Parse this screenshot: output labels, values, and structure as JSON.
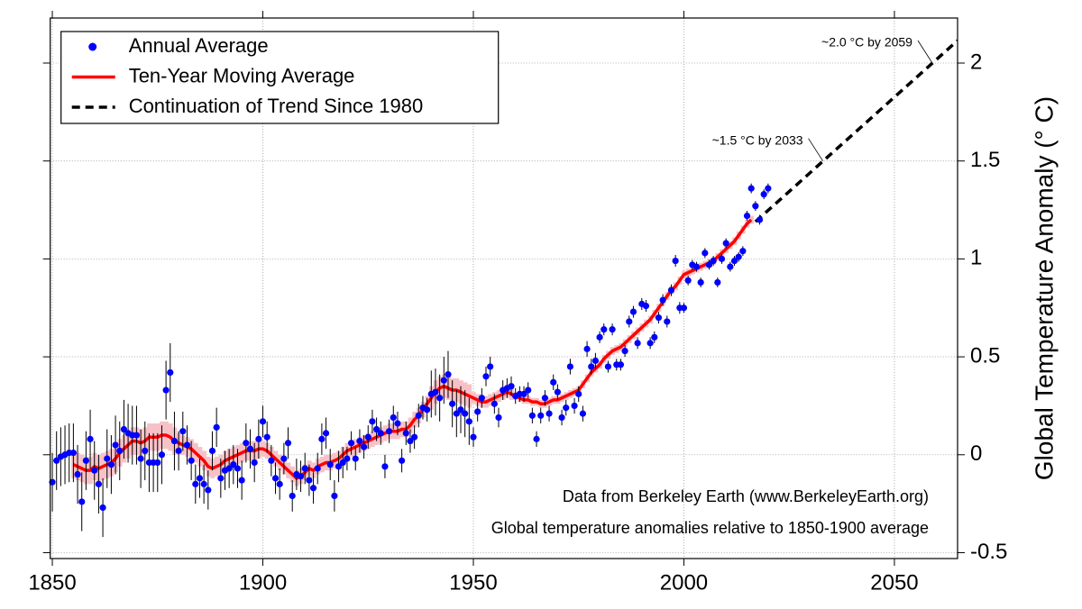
{
  "chart_data": {
    "type": "line",
    "ylabel": "Global Temperature Anomaly (° C)",
    "xlim": [
      1849.5,
      2065
    ],
    "ylim": [
      -0.53,
      2.23
    ],
    "xticks": [
      1850,
      1900,
      1950,
      2000,
      2050
    ],
    "yticks": [
      -0.5,
      0,
      0.5,
      1,
      1.5,
      2
    ],
    "grid": true,
    "legend": "upper left",
    "series": [
      {
        "name": "Annual Average",
        "color": "#0000ff",
        "style": "points",
        "error_color": "#000000",
        "x": [
          1850,
          1851,
          1852,
          1853,
          1854,
          1855,
          1856,
          1857,
          1858,
          1859,
          1860,
          1861,
          1862,
          1863,
          1864,
          1865,
          1866,
          1867,
          1868,
          1869,
          1870,
          1871,
          1872,
          1873,
          1874,
          1875,
          1876,
          1877,
          1878,
          1879,
          1880,
          1881,
          1882,
          1883,
          1884,
          1885,
          1886,
          1887,
          1888,
          1889,
          1890,
          1891,
          1892,
          1893,
          1894,
          1895,
          1896,
          1897,
          1898,
          1899,
          1900,
          1901,
          1902,
          1903,
          1904,
          1905,
          1906,
          1907,
          1908,
          1909,
          1910,
          1911,
          1912,
          1913,
          1914,
          1915,
          1916,
          1917,
          1918,
          1919,
          1920,
          1921,
          1922,
          1923,
          1924,
          1925,
          1926,
          1927,
          1928,
          1929,
          1930,
          1931,
          1932,
          1933,
          1934,
          1935,
          1936,
          1937,
          1938,
          1939,
          1940,
          1941,
          1942,
          1943,
          1944,
          1945,
          1946,
          1947,
          1948,
          1949,
          1950,
          1951,
          1952,
          1953,
          1954,
          1955,
          1956,
          1957,
          1958,
          1959,
          1960,
          1961,
          1962,
          1963,
          1964,
          1965,
          1966,
          1967,
          1968,
          1969,
          1970,
          1971,
          1972,
          1973,
          1974,
          1975,
          1976,
          1977,
          1978,
          1979,
          1980,
          1981,
          1982,
          1983,
          1984,
          1985,
          1986,
          1987,
          1988,
          1989,
          1990,
          1991,
          1992,
          1993,
          1994,
          1995,
          1996,
          1997,
          1998,
          1999,
          2000,
          2001,
          2002,
          2003,
          2004,
          2005,
          2006,
          2007,
          2008,
          2009,
          2010,
          2011,
          2012,
          2013,
          2014,
          2015,
          2016,
          2017,
          2018,
          2019,
          2020
        ],
        "values": [
          -0.14,
          -0.03,
          -0.01,
          0.0,
          0.01,
          0.01,
          -0.1,
          -0.24,
          -0.03,
          0.08,
          -0.08,
          -0.15,
          -0.27,
          -0.02,
          -0.05,
          0.05,
          0.02,
          0.13,
          0.11,
          0.1,
          0.1,
          -0.02,
          0.02,
          -0.04,
          -0.04,
          -0.04,
          0.0,
          0.33,
          0.42,
          0.07,
          0.02,
          0.12,
          0.05,
          -0.03,
          -0.15,
          -0.12,
          -0.15,
          -0.18,
          0.02,
          0.14,
          -0.12,
          -0.08,
          -0.07,
          -0.05,
          -0.07,
          -0.13,
          0.06,
          0.03,
          -0.04,
          0.08,
          0.17,
          0.09,
          -0.03,
          -0.12,
          -0.15,
          -0.02,
          0.06,
          -0.21,
          -0.1,
          -0.11,
          -0.07,
          -0.13,
          -0.17,
          -0.07,
          0.08,
          0.11,
          -0.05,
          -0.21,
          -0.06,
          -0.04,
          -0.02,
          0.06,
          -0.02,
          0.07,
          0.04,
          0.09,
          0.17,
          0.13,
          0.11,
          -0.06,
          0.12,
          0.19,
          0.16,
          -0.03,
          0.11,
          0.07,
          0.09,
          0.2,
          0.24,
          0.23,
          0.31,
          0.32,
          0.29,
          0.38,
          0.41,
          0.26,
          0.21,
          0.23,
          0.21,
          0.17,
          0.09,
          0.22,
          0.29,
          0.4,
          0.45,
          0.26,
          0.19,
          0.33,
          0.34,
          0.35,
          0.3,
          0.31,
          0.31,
          0.33,
          0.2,
          0.08,
          0.2,
          0.29,
          0.21,
          0.37,
          0.32,
          0.19,
          0.24,
          0.45,
          0.25,
          0.31,
          0.21,
          0.54,
          0.45,
          0.48,
          0.6,
          0.64,
          0.45,
          0.64,
          0.46,
          0.46,
          0.53,
          0.68,
          0.73,
          0.57,
          0.77,
          0.76,
          0.57,
          0.6,
          0.7,
          0.79,
          0.68,
          0.84,
          0.99,
          0.75,
          0.75,
          0.89,
          0.97,
          0.96,
          0.88,
          1.03,
          0.97,
          0.99,
          0.88,
          1.0,
          1.08,
          0.96,
          0.99,
          1.01,
          1.04,
          1.22,
          1.36,
          1.27,
          1.2,
          1.33,
          1.36
        ],
        "errors": [
          0.15,
          0.15,
          0.15,
          0.15,
          0.15,
          0.15,
          0.15,
          0.15,
          0.15,
          0.15,
          0.15,
          0.15,
          0.15,
          0.15,
          0.15,
          0.15,
          0.15,
          0.15,
          0.15,
          0.15,
          0.15,
          0.15,
          0.15,
          0.15,
          0.15,
          0.15,
          0.15,
          0.15,
          0.15,
          0.15,
          0.1,
          0.1,
          0.1,
          0.1,
          0.1,
          0.1,
          0.1,
          0.1,
          0.1,
          0.1,
          0.1,
          0.1,
          0.1,
          0.1,
          0.1,
          0.1,
          0.1,
          0.1,
          0.1,
          0.1,
          0.08,
          0.08,
          0.08,
          0.08,
          0.08,
          0.08,
          0.08,
          0.08,
          0.08,
          0.08,
          0.08,
          0.08,
          0.08,
          0.08,
          0.08,
          0.08,
          0.08,
          0.08,
          0.08,
          0.08,
          0.06,
          0.06,
          0.06,
          0.06,
          0.06,
          0.06,
          0.06,
          0.06,
          0.06,
          0.06,
          0.06,
          0.06,
          0.06,
          0.06,
          0.06,
          0.06,
          0.06,
          0.06,
          0.06,
          0.06,
          0.12,
          0.12,
          0.12,
          0.12,
          0.12,
          0.12,
          0.12,
          0.12,
          0.12,
          0.12,
          0.05,
          0.05,
          0.05,
          0.05,
          0.05,
          0.05,
          0.05,
          0.05,
          0.05,
          0.05,
          0.04,
          0.04,
          0.04,
          0.04,
          0.04,
          0.04,
          0.04,
          0.04,
          0.04,
          0.04,
          0.04,
          0.04,
          0.04,
          0.04,
          0.04,
          0.04,
          0.04,
          0.04,
          0.04,
          0.04,
          0.03,
          0.03,
          0.03,
          0.03,
          0.03,
          0.03,
          0.03,
          0.03,
          0.03,
          0.03,
          0.03,
          0.03,
          0.03,
          0.03,
          0.03,
          0.03,
          0.03,
          0.03,
          0.03,
          0.03,
          0.025,
          0.025,
          0.025,
          0.025,
          0.025,
          0.025,
          0.025,
          0.025,
          0.025,
          0.025,
          0.025,
          0.025,
          0.025,
          0.025,
          0.025,
          0.025,
          0.025,
          0.025,
          0.025,
          0.025,
          0.025
        ]
      },
      {
        "name": "Ten-Year Moving Average",
        "color": "#ff0000",
        "style": "line",
        "band_color": "#f6c2c8",
        "x": [
          1855,
          1856,
          1857,
          1858,
          1859,
          1860,
          1861,
          1862,
          1863,
          1864,
          1865,
          1866,
          1867,
          1868,
          1869,
          1870,
          1871,
          1872,
          1873,
          1874,
          1875,
          1876,
          1877,
          1878,
          1879,
          1880,
          1881,
          1882,
          1883,
          1884,
          1885,
          1886,
          1887,
          1888,
          1889,
          1890,
          1891,
          1892,
          1893,
          1894,
          1895,
          1896,
          1897,
          1898,
          1899,
          1900,
          1901,
          1902,
          1903,
          1904,
          1905,
          1906,
          1907,
          1908,
          1909,
          1910,
          1911,
          1912,
          1913,
          1914,
          1915,
          1916,
          1917,
          1918,
          1919,
          1920,
          1921,
          1922,
          1923,
          1924,
          1925,
          1926,
          1927,
          1928,
          1929,
          1930,
          1931,
          1932,
          1933,
          1934,
          1935,
          1936,
          1937,
          1938,
          1939,
          1940,
          1941,
          1942,
          1943,
          1944,
          1945,
          1946,
          1947,
          1948,
          1949,
          1950,
          1951,
          1952,
          1953,
          1954,
          1955,
          1956,
          1957,
          1958,
          1959,
          1960,
          1961,
          1962,
          1963,
          1964,
          1965,
          1966,
          1967,
          1968,
          1969,
          1970,
          1971,
          1972,
          1973,
          1974,
          1975,
          1976,
          1977,
          1978,
          1979,
          1980,
          1981,
          1982,
          1983,
          1984,
          1985,
          1986,
          1987,
          1988,
          1989,
          1990,
          1991,
          1992,
          1993,
          1994,
          1995,
          1996,
          1997,
          1998,
          1999,
          2000,
          2001,
          2002,
          2003,
          2004,
          2005,
          2006,
          2007,
          2008,
          2009,
          2010,
          2011,
          2012,
          2013,
          2014,
          2015,
          2016
        ],
        "values": [
          -0.05,
          -0.06,
          -0.07,
          -0.08,
          -0.08,
          -0.06,
          -0.07,
          -0.06,
          -0.05,
          -0.04,
          -0.02,
          0.01,
          0.03,
          0.05,
          0.07,
          0.07,
          0.06,
          0.07,
          0.09,
          0.09,
          0.09,
          0.1,
          0.1,
          0.09,
          0.07,
          0.06,
          0.05,
          0.04,
          0.03,
          0.01,
          -0.01,
          -0.03,
          -0.06,
          -0.07,
          -0.06,
          -0.05,
          -0.03,
          -0.02,
          -0.01,
          0.0,
          0.01,
          0.02,
          0.02,
          0.02,
          0.03,
          0.03,
          0.02,
          0.0,
          -0.02,
          -0.04,
          -0.06,
          -0.08,
          -0.1,
          -0.12,
          -0.11,
          -0.09,
          -0.07,
          -0.08,
          -0.06,
          -0.05,
          -0.04,
          -0.04,
          -0.03,
          -0.02,
          0.0,
          0.02,
          0.03,
          0.04,
          0.05,
          0.06,
          0.07,
          0.08,
          0.09,
          0.1,
          0.11,
          0.12,
          0.12,
          0.12,
          0.13,
          0.13,
          0.15,
          0.18,
          0.2,
          0.23,
          0.26,
          0.29,
          0.32,
          0.34,
          0.35,
          0.34,
          0.33,
          0.33,
          0.32,
          0.31,
          0.3,
          0.29,
          0.28,
          0.27,
          0.27,
          0.28,
          0.29,
          0.3,
          0.31,
          0.32,
          0.31,
          0.3,
          0.29,
          0.28,
          0.28,
          0.27,
          0.27,
          0.26,
          0.26,
          0.27,
          0.28,
          0.28,
          0.29,
          0.3,
          0.31,
          0.32,
          0.33,
          0.36,
          0.39,
          0.42,
          0.44,
          0.46,
          0.49,
          0.51,
          0.53,
          0.54,
          0.55,
          0.57,
          0.59,
          0.61,
          0.63,
          0.65,
          0.67,
          0.69,
          0.72,
          0.75,
          0.78,
          0.81,
          0.84,
          0.86,
          0.89,
          0.92,
          0.93,
          0.94,
          0.95,
          0.96,
          0.97,
          0.98,
          0.99,
          1.01,
          1.03,
          1.05,
          1.07,
          1.09,
          1.12,
          1.15,
          1.18,
          1.2
        ],
        "errors": [
          0.07,
          0.07,
          0.07,
          0.07,
          0.07,
          0.07,
          0.07,
          0.07,
          0.07,
          0.07,
          0.07,
          0.07,
          0.07,
          0.07,
          0.07,
          0.07,
          0.07,
          0.07,
          0.07,
          0.07,
          0.07,
          0.07,
          0.07,
          0.07,
          0.07,
          0.05,
          0.05,
          0.05,
          0.05,
          0.05,
          0.05,
          0.05,
          0.05,
          0.05,
          0.05,
          0.05,
          0.05,
          0.05,
          0.05,
          0.05,
          0.05,
          0.05,
          0.05,
          0.05,
          0.05,
          0.04,
          0.04,
          0.04,
          0.04,
          0.04,
          0.04,
          0.04,
          0.04,
          0.04,
          0.04,
          0.04,
          0.04,
          0.04,
          0.04,
          0.04,
          0.04,
          0.04,
          0.04,
          0.04,
          0.04,
          0.04,
          0.04,
          0.04,
          0.04,
          0.04,
          0.04,
          0.04,
          0.04,
          0.04,
          0.04,
          0.04,
          0.04,
          0.04,
          0.04,
          0.04,
          0.04,
          0.04,
          0.04,
          0.04,
          0.04,
          0.06,
          0.06,
          0.06,
          0.06,
          0.06,
          0.06,
          0.06,
          0.06,
          0.06,
          0.06,
          0.03,
          0.03,
          0.03,
          0.03,
          0.03,
          0.03,
          0.03,
          0.03,
          0.03,
          0.03,
          0.02,
          0.02,
          0.02,
          0.02,
          0.02,
          0.02,
          0.02,
          0.02,
          0.02,
          0.02,
          0.02,
          0.02,
          0.02,
          0.02,
          0.02,
          0.02,
          0.02,
          0.02,
          0.02,
          0.02,
          0.02,
          0.02,
          0.02,
          0.02,
          0.02,
          0.02,
          0.02,
          0.02,
          0.02,
          0.02,
          0.02,
          0.02,
          0.02,
          0.02,
          0.02,
          0.02,
          0.02,
          0.02,
          0.02,
          0.02,
          0.02,
          0.02,
          0.02,
          0.02,
          0.02,
          0.02,
          0.02,
          0.02,
          0.02,
          0.02,
          0.02,
          0.02,
          0.02,
          0.02,
          0.02,
          0.02,
          0.02
        ]
      },
      {
        "name": "Continuation of Trend Since 1980",
        "color": "#000000",
        "style": "dashed",
        "x": [
          2017,
          2065
        ],
        "values": [
          1.19,
          2.115
        ]
      }
    ],
    "annotations": [
      {
        "text": "~1.5 °C by 2033",
        "x": 2033,
        "y": 1.5
      },
      {
        "text": "~2.0 °C by 2059",
        "x": 2059,
        "y": 2.0
      }
    ],
    "notes": [
      "Data from Berkeley Earth (www.BerkeleyEarth.org)",
      "Global temperature anomalies relative to 1850-1900 average"
    ]
  }
}
